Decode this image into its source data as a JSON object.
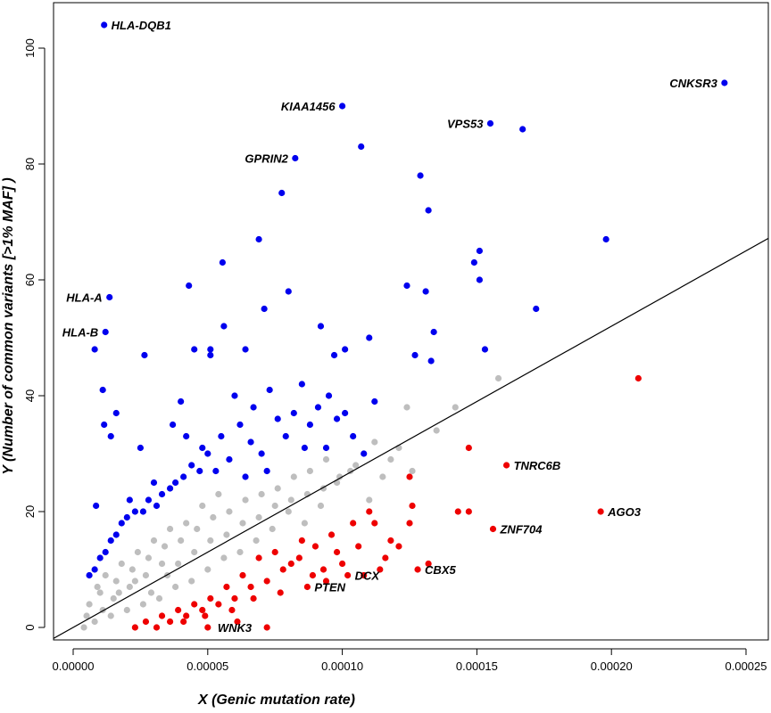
{
  "chart_data": {
    "type": "scatter",
    "title": "",
    "xlabel": "X (Genic mutation rate)",
    "ylabel": "Y (Number of common variants [>1% MAF] )",
    "xlim": [
      0,
      0.00025
    ],
    "ylim": [
      0,
      100
    ],
    "x_ticks": [
      "0.00000",
      "0.00005",
      "0.00010",
      "0.00015",
      "0.00020",
      "0.00025"
    ],
    "y_ticks": [
      "0",
      "20",
      "40",
      "60",
      "80",
      "100"
    ],
    "grid": false,
    "reference_line": {
      "slope": 260000,
      "intercept": 0
    },
    "colors": {
      "above": "#0000ee",
      "neutral": "#bebebe",
      "below": "#ee0000",
      "line": "#000000"
    },
    "series": [
      {
        "group": "above",
        "color": "#0000ee",
        "points": [
          [
            1.15e-05,
            104
          ],
          [
            1.35e-05,
            57
          ],
          [
            1.2e-05,
            51
          ],
          [
            8e-06,
            48
          ],
          [
            2.65e-05,
            47
          ],
          [
            0.000242,
            94
          ],
          [
            0.0001,
            90
          ],
          [
            0.000107,
            83
          ],
          [
            8.25e-05,
            81
          ],
          [
            7.75e-05,
            75
          ],
          [
            0.000155,
            87
          ],
          [
            0.000167,
            86
          ],
          [
            0.000129,
            78
          ],
          [
            0.000132,
            72
          ],
          [
            6.9e-05,
            67
          ],
          [
            0.000198,
            67
          ],
          [
            0.000151,
            65
          ],
          [
            5.55e-05,
            63
          ],
          [
            0.000149,
            63
          ],
          [
            4.3e-05,
            59
          ],
          [
            0.000124,
            59
          ],
          [
            8e-05,
            58
          ],
          [
            0.000131,
            58
          ],
          [
            0.000151,
            60
          ],
          [
            0.000172,
            55
          ],
          [
            7.1e-05,
            55
          ],
          [
            5.6e-05,
            52
          ],
          [
            9.2e-05,
            52
          ],
          [
            0.000134,
            51
          ],
          [
            0.00011,
            50
          ],
          [
            4.5e-05,
            48
          ],
          [
            5.1e-05,
            48
          ],
          [
            6.4e-05,
            48
          ],
          [
            0.000101,
            48
          ],
          [
            0.000153,
            48
          ],
          [
            5.1e-05,
            47
          ],
          [
            9.7e-05,
            47
          ],
          [
            0.000127,
            47
          ],
          [
            0.000133,
            46
          ],
          [
            4e-05,
            39
          ],
          [
            1.1e-05,
            41
          ],
          [
            1.6e-05,
            37
          ],
          [
            1.15e-05,
            35
          ],
          [
            1.4e-05,
            33
          ],
          [
            8.5e-06,
            21
          ],
          [
            2.5e-05,
            31
          ],
          [
            3.7e-05,
            35
          ],
          [
            4.2e-05,
            33
          ],
          [
            6e-05,
            40
          ],
          [
            6.7e-05,
            38
          ],
          [
            7.3e-05,
            41
          ],
          [
            8.5e-05,
            42
          ],
          [
            9.1e-05,
            38
          ],
          [
            9.8e-05,
            36
          ],
          [
            0.000104,
            33
          ],
          [
            0.000112,
            39
          ],
          [
            8.8e-05,
            35
          ],
          [
            7.9e-05,
            33
          ],
          [
            9.4e-05,
            31
          ],
          [
            7e-05,
            30
          ],
          [
            5.8e-05,
            29
          ],
          [
            4.7e-05,
            27
          ],
          [
            3e-05,
            25
          ],
          [
            2.1e-05,
            22
          ],
          [
            6e-06,
            9
          ],
          [
            1e-05,
            12
          ],
          [
            1.4e-05,
            15
          ],
          [
            1.8e-05,
            18
          ],
          [
            2.3e-05,
            20
          ],
          [
            2.8e-05,
            22
          ],
          [
            3.3e-05,
            23
          ],
          [
            3.8e-05,
            25
          ],
          [
            4.4e-05,
            28
          ],
          [
            5e-05,
            30
          ],
          [
            5.5e-05,
            33
          ],
          [
            6.2e-05,
            35
          ],
          [
            6.6e-05,
            32
          ],
          [
            7.6e-05,
            36
          ],
          [
            8.2e-05,
            37
          ],
          [
            9.5e-05,
            40
          ],
          [
            8e-06,
            10
          ],
          [
            1.2e-05,
            13
          ],
          [
            1.6e-05,
            16
          ],
          [
            2e-05,
            19
          ],
          [
            2.6e-05,
            20
          ],
          [
            3.1e-05,
            21
          ],
          [
            3.6e-05,
            24
          ],
          [
            4.1e-05,
            26
          ],
          [
            4.8e-05,
            31
          ],
          [
            5.3e-05,
            27
          ],
          [
            6.4e-05,
            26
          ],
          [
            7.2e-05,
            27
          ],
          [
            8.6e-05,
            31
          ],
          [
            0.000101,
            37
          ],
          [
            0.000108,
            30
          ]
        ]
      },
      {
        "group": "neutral",
        "color": "#bebebe",
        "points": [
          [
            0.000158,
            43
          ],
          [
            0.000124,
            38
          ],
          [
            0.000135,
            34
          ],
          [
            0.000142,
            38
          ],
          [
            0.000112,
            32
          ],
          [
            0.000118,
            29
          ],
          [
            0.000103,
            27
          ],
          [
            0.000126,
            27
          ],
          [
            0.00011,
            22
          ],
          [
            9.8e-05,
            25
          ],
          [
            9.2e-05,
            21
          ],
          [
            8.6e-05,
            18
          ],
          [
            8e-05,
            20
          ],
          [
            7.4e-05,
            17
          ],
          [
            6.8e-05,
            15
          ],
          [
            6.2e-05,
            13
          ],
          [
            5.6e-05,
            12
          ],
          [
            5e-05,
            10
          ],
          [
            4.4e-05,
            8
          ],
          [
            3.8e-05,
            7
          ],
          [
            3.2e-05,
            5
          ],
          [
            2.6e-05,
            4
          ],
          [
            2e-05,
            3
          ],
          [
            1.4e-05,
            2
          ],
          [
            8e-06,
            1
          ],
          [
            4e-06,
            0
          ],
          [
            6e-06,
            4
          ],
          [
            1e-05,
            6
          ],
          [
            1.6e-05,
            8
          ],
          [
            2.2e-05,
            10
          ],
          [
            2.8e-05,
            12
          ],
          [
            3.4e-05,
            14
          ],
          [
            4e-05,
            15
          ],
          [
            4.6e-05,
            17
          ],
          [
            5.2e-05,
            19
          ],
          [
            5.8e-05,
            20
          ],
          [
            6.4e-05,
            22
          ],
          [
            7e-05,
            23
          ],
          [
            7.6e-05,
            24
          ],
          [
            8.2e-05,
            26
          ],
          [
            8.8e-05,
            27
          ],
          [
            9.4e-05,
            29
          ],
          [
            1.2e-05,
            9
          ],
          [
            1.8e-05,
            11
          ],
          [
            2.4e-05,
            13
          ],
          [
            3e-05,
            15
          ],
          [
            3.6e-05,
            17
          ],
          [
            4.2e-05,
            18
          ],
          [
            4.8e-05,
            21
          ],
          [
            5.4e-05,
            23
          ],
          [
            9e-06,
            7
          ],
          [
            1.5e-05,
            5
          ],
          [
            2.1e-05,
            7
          ],
          [
            2.7e-05,
            9
          ],
          [
            3.3e-05,
            11
          ],
          [
            3.9e-05,
            11
          ],
          [
            4.5e-05,
            13
          ],
          [
            5.1e-05,
            15
          ],
          [
            5.7e-05,
            16
          ],
          [
            6.3e-05,
            18
          ],
          [
            6.9e-05,
            19
          ],
          [
            7.5e-05,
            21
          ],
          [
            8.1e-05,
            22
          ],
          [
            8.7e-05,
            23
          ],
          [
            9.3e-05,
            24
          ],
          [
            9.9e-05,
            26
          ],
          [
            0.000105,
            28
          ],
          [
            0.000115,
            26
          ],
          [
            0.000121,
            31
          ],
          [
            5e-06,
            2
          ],
          [
            1.1e-05,
            3
          ],
          [
            1.7e-05,
            6
          ],
          [
            2.3e-05,
            8
          ],
          [
            2.9e-05,
            6
          ],
          [
            3.5e-05,
            9
          ]
        ]
      },
      {
        "group": "below",
        "color": "#ee0000",
        "points": [
          [
            0.00021,
            43
          ],
          [
            0.000147,
            31
          ],
          [
            0.000161,
            28
          ],
          [
            0.000125,
            26
          ],
          [
            0.000143,
            20
          ],
          [
            0.000147,
            20
          ],
          [
            0.000156,
            17
          ],
          [
            0.000196,
            20
          ],
          [
            0.000126,
            21
          ],
          [
            0.000125,
            18
          ],
          [
            0.000132,
            11
          ],
          [
            0.000128,
            10
          ],
          [
            0.000102,
            9
          ],
          [
            0.000114,
            10
          ],
          [
            9.4e-05,
            8
          ],
          [
            8.7e-05,
            7
          ],
          [
            8.1e-05,
            11
          ],
          [
            7.5e-05,
            13
          ],
          [
            6.9e-05,
            12
          ],
          [
            6.3e-05,
            9
          ],
          [
            5.7e-05,
            7
          ],
          [
            5.1e-05,
            5
          ],
          [
            4.5e-05,
            4
          ],
          [
            3.9e-05,
            3
          ],
          [
            3.3e-05,
            2
          ],
          [
            2.7e-05,
            1
          ],
          [
            2.3e-05,
            0
          ],
          [
            3.1e-05,
            0
          ],
          [
            4.1e-05,
            1
          ],
          [
            4.9e-05,
            2
          ],
          [
            5.9e-05,
            3
          ],
          [
            6.7e-05,
            5
          ],
          [
            7.7e-05,
            6
          ],
          [
            8.9e-05,
            9
          ],
          [
            9.8e-05,
            13
          ],
          [
            0.000106,
            14
          ],
          [
            0.000112,
            18
          ],
          [
            0.000118,
            15
          ],
          [
            0.00011,
            20
          ],
          [
            0.000104,
            18
          ],
          [
            9.6e-05,
            16
          ],
          [
            9e-05,
            14
          ],
          [
            8.4e-05,
            12
          ],
          [
            7.8e-05,
            10
          ],
          [
            7.2e-05,
            8
          ],
          [
            6.6e-05,
            7
          ],
          [
            6e-05,
            5
          ],
          [
            5.4e-05,
            4
          ],
          [
            4.8e-05,
            3
          ],
          [
            4.2e-05,
            2
          ],
          [
            3.6e-05,
            1
          ],
          [
            5e-05,
            0
          ],
          [
            7.2e-05,
            0
          ],
          [
            6.1e-05,
            1
          ],
          [
            8.5e-05,
            15
          ],
          [
            0.0001,
            11
          ],
          [
            0.000108,
            9
          ],
          [
            0.000116,
            12
          ],
          [
            0.000121,
            14
          ],
          [
            9.3e-05,
            10
          ]
        ]
      }
    ],
    "annotations": [
      {
        "label": "HLA-DQB1",
        "x": 1.15e-05,
        "y": 104,
        "side": "right"
      },
      {
        "label": "HLA-A",
        "x": 1.35e-05,
        "y": 57,
        "side": "left"
      },
      {
        "label": "HLA-B",
        "x": 1.2e-05,
        "y": 51,
        "side": "left"
      },
      {
        "label": "KIAA1456",
        "x": 0.0001,
        "y": 90,
        "side": "left"
      },
      {
        "label": "GPRIN2",
        "x": 8.25e-05,
        "y": 81,
        "side": "left"
      },
      {
        "label": "VPS53",
        "x": 0.000155,
        "y": 87,
        "side": "left"
      },
      {
        "label": "CNKSR3",
        "x": 0.000242,
        "y": 94,
        "side": "left"
      },
      {
        "label": "TNRC6B",
        "x": 0.000161,
        "y": 28,
        "side": "right"
      },
      {
        "label": "ZNF704",
        "x": 0.000156,
        "y": 17,
        "side": "right"
      },
      {
        "label": "AGO3",
        "x": 0.000196,
        "y": 20,
        "side": "right"
      },
      {
        "label": "CBX5",
        "x": 0.000128,
        "y": 10,
        "side": "right"
      },
      {
        "label": "DCX",
        "x": 0.000102,
        "y": 9,
        "side": "right"
      },
      {
        "label": "PTEN",
        "x": 8.7e-05,
        "y": 7,
        "side": "right"
      },
      {
        "label": "WNK3",
        "x": 5.1e-05,
        "y": 0,
        "side": "right"
      }
    ]
  }
}
